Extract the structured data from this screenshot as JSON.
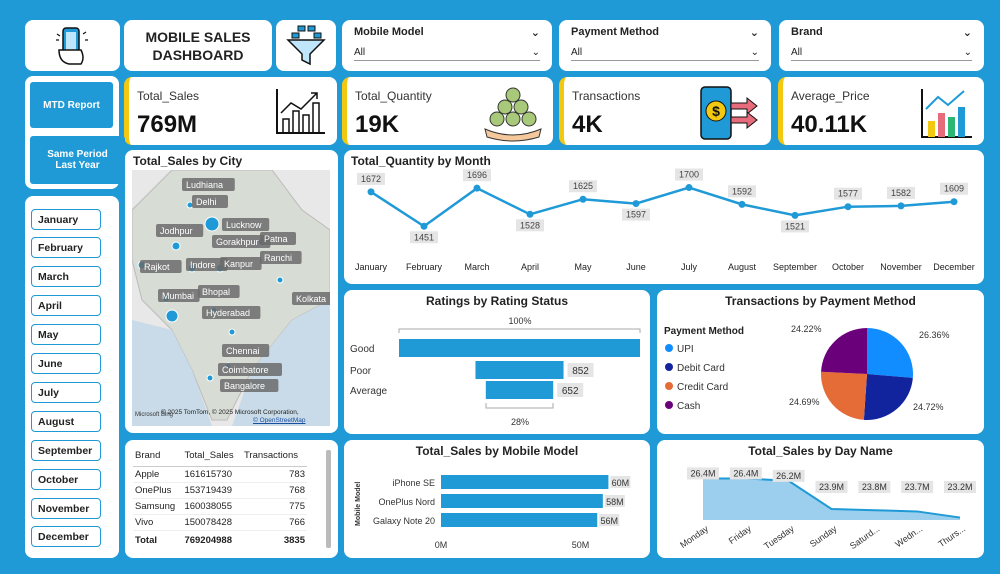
{
  "header": {
    "title_line1": "MOBILE SALES",
    "title_line2": "DASHBOARD"
  },
  "filters": [
    {
      "label": "Mobile Model",
      "value": "All"
    },
    {
      "label": "Payment Method",
      "value": "All"
    },
    {
      "label": "Brand",
      "value": "All"
    }
  ],
  "kpis": [
    {
      "label": "Total_Sales",
      "value": "769M",
      "icon": "bar-chart-icon"
    },
    {
      "label": "Total_Quantity",
      "value": "19K",
      "icon": "coins-stack-icon"
    },
    {
      "label": "Transactions",
      "value": "4K",
      "icon": "mobile-payment-icon"
    },
    {
      "label": "Average_Price",
      "value": "40.11K",
      "icon": "rising-bars-icon"
    }
  ],
  "nav_buttons": [
    "MTD Report",
    "Same Period Last Year"
  ],
  "months": [
    "January",
    "February",
    "March",
    "April",
    "May",
    "June",
    "July",
    "August",
    "September",
    "October",
    "November",
    "December"
  ],
  "map": {
    "title": "Total_Sales by City",
    "cities": [
      "Ludhiana",
      "Delhi",
      "Lucknow",
      "Jodhpur",
      "Gorakhpur",
      "Patna",
      "Rajkot",
      "Indore",
      "Kanpur",
      "Ranchi",
      "Mumbai",
      "Bhopal",
      "Kolkata",
      "Hyderabad",
      "Chennai",
      "Coimbatore",
      "Bangalore"
    ],
    "attribution": "© 2025 TomTom, © 2025 Microsoft Corporation,",
    "osm": "© OpenStreetMap",
    "bing": "Microsoft Bing"
  },
  "brand_table": {
    "headers": [
      "Brand",
      "Total_Sales",
      "Transactions"
    ],
    "rows": [
      [
        "Apple",
        "161615730",
        "783"
      ],
      [
        "OnePlus",
        "153719439",
        "768"
      ],
      [
        "Samsung",
        "160038055",
        "775"
      ],
      [
        "Vivo",
        "150078428",
        "766"
      ]
    ],
    "total": [
      "Total",
      "769204988",
      "3835"
    ]
  },
  "charts": {
    "quantity_by_month": {
      "title": "Total_Quantity by Month",
      "chart_data": {
        "type": "line",
        "categories": [
          "January",
          "February",
          "March",
          "April",
          "May",
          "June",
          "July",
          "August",
          "September",
          "October",
          "November",
          "December"
        ],
        "values": [
          1672,
          1451,
          1696,
          1528,
          1625,
          1597,
          1700,
          1592,
          1521,
          1577,
          1582,
          1609
        ],
        "labels": [
          "1672",
          "1451",
          "1696",
          "1528",
          "1625",
          "1597",
          "1700",
          "1592",
          "1521",
          "1577",
          "1582",
          "1609"
        ]
      }
    },
    "ratings": {
      "title": "Ratings by Rating Status",
      "top_label": "100%",
      "bottom_label": "28%",
      "chart_data": {
        "type": "bar",
        "categories": [
          "Good",
          "Poor",
          "Average"
        ],
        "values": [
          2331,
          852,
          652
        ],
        "labels": [
          "",
          "852",
          "652"
        ]
      }
    },
    "payment": {
      "title": "Transactions by Payment Method",
      "legend_title": "Payment Method",
      "chart_data": {
        "type": "pie",
        "categories": [
          "UPI",
          "Debit Card",
          "Credit Card",
          "Cash"
        ],
        "values": [
          26.36,
          24.72,
          24.69,
          24.22
        ],
        "labels": [
          "26.36%",
          "24.72%",
          "24.69%",
          "24.22%"
        ],
        "colors": [
          "#118dff",
          "#12239e",
          "#e66c37",
          "#6b007b"
        ]
      }
    },
    "sales_by_model": {
      "title": "Total_Sales by Mobile Model",
      "ylabel": "Mobile Model",
      "axis_labels": [
        "0M",
        "50M"
      ],
      "chart_data": {
        "type": "bar",
        "categories": [
          "iPhone SE",
          "OnePlus Nord",
          "Galaxy Note 20"
        ],
        "values": [
          60,
          58,
          56
        ],
        "labels": [
          "60M",
          "58M",
          "56M"
        ],
        "xlim": [
          0,
          62
        ]
      }
    },
    "sales_by_day": {
      "title": "Total_Sales by Day Name",
      "chart_data": {
        "type": "area",
        "categories": [
          "Monday",
          "Friday",
          "Tuesday",
          "Sunday",
          "Saturd...",
          "Wedn...",
          "Thurs..."
        ],
        "values": [
          26.4,
          26.4,
          26.2,
          23.9,
          23.8,
          23.7,
          23.2
        ],
        "labels": [
          "26.4M",
          "26.4M",
          "26.2M",
          "23.9M",
          "23.8M",
          "23.7M",
          "23.2M"
        ]
      }
    }
  },
  "colors": {
    "background": "#1f9ad6",
    "accent": "#f2c811",
    "bar": "#1f9ad6"
  }
}
